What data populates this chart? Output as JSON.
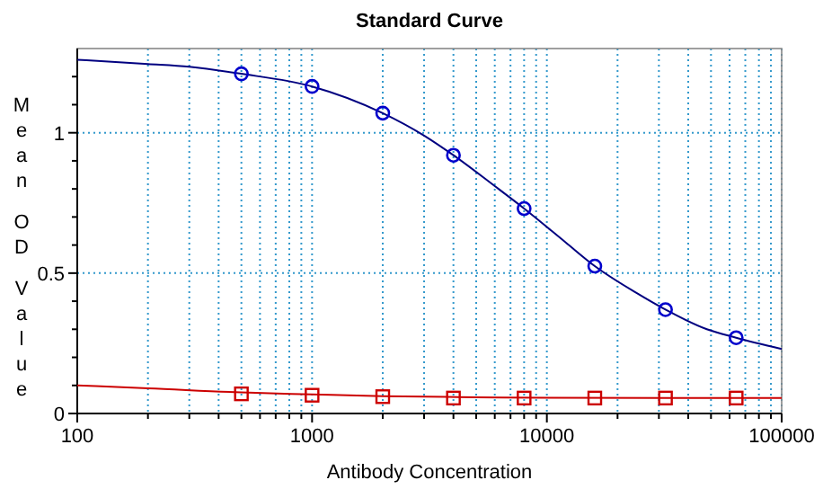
{
  "chart_data": {
    "type": "scatter",
    "title": "Standard Curve",
    "xlabel": "Antibody Concentration",
    "ylabel": "Mean OD Value",
    "log": "x",
    "grid": true,
    "line_style": "solid",
    "xlim": [
      100,
      100000
    ],
    "ylim": [
      0,
      1.3
    ],
    "xticks": [
      100,
      {
        "value": 200,
        "label": null
      },
      {
        "value": 300,
        "label": null
      },
      {
        "value": 400,
        "label": null
      },
      {
        "value": 500,
        "label": null
      },
      {
        "value": 600,
        "label": null
      },
      {
        "value": 700,
        "label": null
      },
      {
        "value": 800,
        "label": null
      },
      {
        "value": 900,
        "label": null
      },
      1000,
      {
        "value": 2000,
        "label": null
      },
      {
        "value": 3000,
        "label": null
      },
      {
        "value": 4000,
        "label": null
      },
      {
        "value": 5000,
        "label": null
      },
      {
        "value": 6000,
        "label": null
      },
      {
        "value": 7000,
        "label": null
      },
      {
        "value": 8000,
        "label": null
      },
      {
        "value": 9000,
        "label": null
      },
      10000,
      {
        "value": 20000,
        "label": null
      },
      {
        "value": 30000,
        "label": null
      },
      {
        "value": 40000,
        "label": null
      },
      {
        "value": 50000,
        "label": null
      },
      {
        "value": 60000,
        "label": null
      },
      {
        "value": 70000,
        "label": null
      },
      {
        "value": 80000,
        "label": null
      },
      {
        "value": 90000,
        "label": null
      },
      100000
    ],
    "yticks": [
      0,
      {
        "value": 0.1,
        "label": null
      },
      {
        "value": 0.2,
        "label": null
      },
      {
        "value": 0.3,
        "label": null
      },
      {
        "value": 0.4,
        "label": null
      },
      0.5,
      {
        "value": 0.6,
        "label": null
      },
      {
        "value": 0.7,
        "label": null
      },
      {
        "value": 0.8,
        "label": null
      },
      {
        "value": 0.9,
        "label": null
      },
      1,
      {
        "value": 1.1,
        "label": null
      },
      {
        "value": 1.2,
        "label": null
      }
    ],
    "series": [
      {
        "type": "line",
        "color": "#000080",
        "marker": "none",
        "x": [
          100,
          200,
          300,
          500,
          1000,
          2000,
          3000,
          4000,
          6000,
          8000,
          12000,
          16000,
          24000,
          32000,
          48000,
          64000,
          100000
        ],
        "values": [
          1.26,
          1.245,
          1.235,
          1.21,
          1.165,
          1.07,
          0.99,
          0.92,
          0.81,
          0.73,
          0.61,
          0.525,
          0.43,
          0.37,
          0.3,
          0.27,
          0.23
        ]
      },
      {
        "color": "#0000cc",
        "marker": "circle",
        "x": [
          500,
          1000,
          2000,
          4000,
          8000,
          16000,
          32000,
          64000
        ],
        "values": [
          1.21,
          1.165,
          1.07,
          0.92,
          0.73,
          0.525,
          0.37,
          0.27
        ]
      },
      {
        "type": "line",
        "color": "#cc0000",
        "marker": "none",
        "x": [
          100,
          200,
          500,
          1000,
          2000,
          5000,
          10000,
          100000
        ],
        "values": [
          0.1,
          0.09,
          0.075,
          0.068,
          0.062,
          0.058,
          0.056,
          0.055
        ]
      },
      {
        "color": "#cc0000",
        "marker": "square",
        "x": [
          500,
          1000,
          2000,
          4000,
          8000,
          16000,
          32000,
          64000
        ],
        "values": [
          0.07,
          0.065,
          0.06,
          0.055,
          0.055,
          0.055,
          0.055,
          0.055
        ]
      }
    ]
  }
}
